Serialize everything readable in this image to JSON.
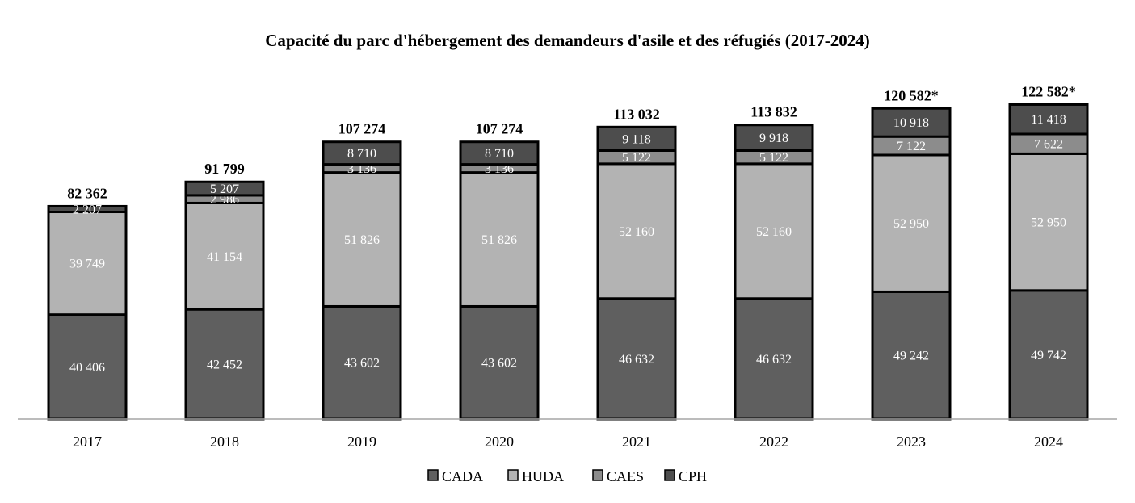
{
  "chart_data": {
    "type": "bar",
    "stacked": true,
    "title": "Capacité du parc d'hébergement des demandeurs d'asile et des réfugiés (2017-2024)",
    "categories": [
      "2017",
      "2018",
      "2019",
      "2020",
      "2021",
      "2022",
      "2023",
      "2024"
    ],
    "series": [
      {
        "name": "CADA",
        "color": "#5f5f5f",
        "values": [
          40406,
          42452,
          43602,
          43602,
          46632,
          46632,
          49242,
          49742
        ],
        "labels": [
          "40 406",
          "42 452",
          "43 602",
          "43 602",
          "46 632",
          "46 632",
          "49 242",
          "49 742"
        ]
      },
      {
        "name": "HUDA",
        "color": "#b3b3b3",
        "values": [
          39749,
          41154,
          51826,
          51826,
          52160,
          52160,
          52950,
          52950
        ],
        "labels": [
          "39 749",
          "41 154",
          "51 826",
          "51 826",
          "52 160",
          "52 160",
          "52 950",
          "52 950"
        ]
      },
      {
        "name": "CAES",
        "color": "#8c8c8c",
        "values": [
          0,
          2986,
          3136,
          3136,
          5122,
          5122,
          7122,
          7622
        ],
        "labels": [
          "",
          "2 986",
          "3 136",
          "3 136",
          "5 122",
          "5 122",
          "7 122",
          "7 622"
        ]
      },
      {
        "name": "CPH",
        "color": "#4d4d4d",
        "values": [
          2207,
          5207,
          8710,
          8710,
          9118,
          9918,
          10918,
          11418
        ],
        "labels": [
          "2 207",
          "5 207",
          "8 710",
          "8 710",
          "9 118",
          "9 918",
          "10 918",
          "11 418"
        ]
      }
    ],
    "totals": [
      "82 362",
      "91 799",
      "107 274",
      "107 274",
      "113 032",
      "113 832",
      "120 582*",
      "122 582*"
    ],
    "ylim": [
      0,
      140000
    ],
    "legend": "bottom-center",
    "grid": false
  }
}
